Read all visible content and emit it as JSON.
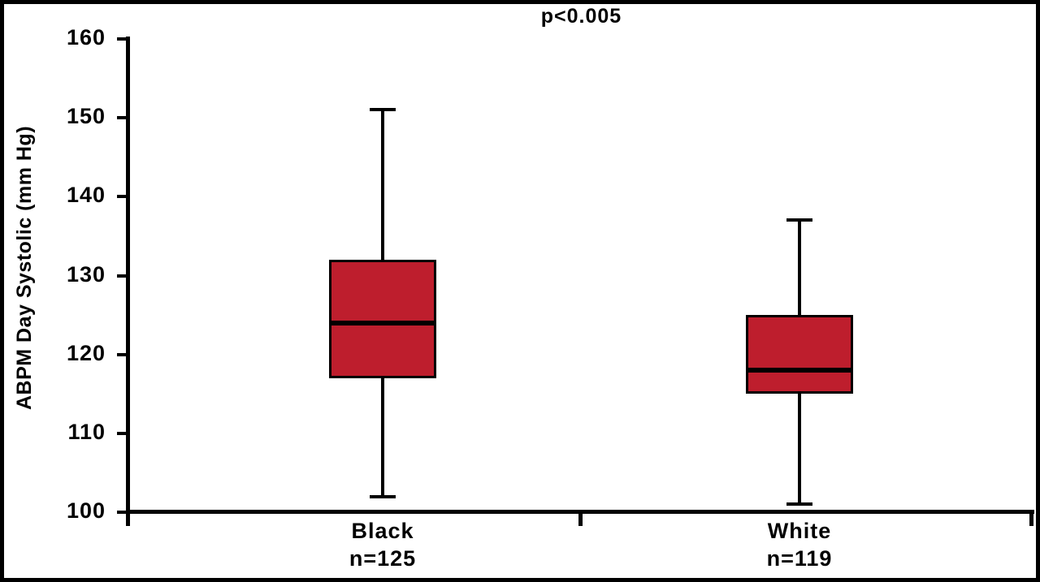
{
  "chart_data": {
    "type": "box",
    "title": "",
    "annotation": "p<0.005",
    "ylabel": "ABPM Day Systolic (mm Hg)",
    "xlabel": "",
    "ylim": [
      100,
      160
    ],
    "yticks": [
      100,
      110,
      120,
      130,
      140,
      150,
      160
    ],
    "grid": false,
    "legend": "none",
    "colors": {
      "box_fill": "#BE1E2D",
      "line": "#000000",
      "background": "#FFFFFF"
    },
    "series": [
      {
        "name": "Black",
        "n": 125,
        "n_label": "n=125",
        "whisker_low": 102,
        "q1": 117,
        "median": 124,
        "q3": 132,
        "whisker_high": 151
      },
      {
        "name": "White",
        "n": 119,
        "n_label": "n=119",
        "whisker_low": 101,
        "q1": 115,
        "median": 118,
        "q3": 125,
        "whisker_high": 137
      }
    ]
  }
}
